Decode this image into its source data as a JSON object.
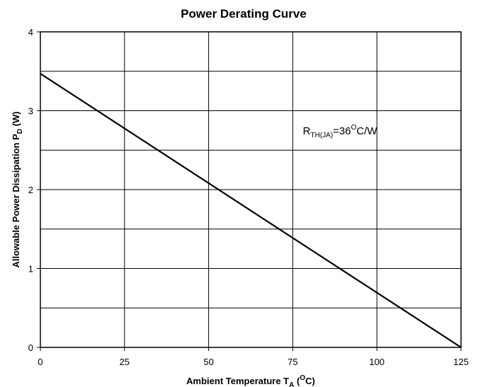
{
  "chart_data": {
    "type": "line",
    "title": "Power Derating Curve",
    "xlabel": {
      "main": "Ambient Temperature T",
      "sub": "A",
      "paren_open": " (",
      "sup": "O",
      "unit": "C)"
    },
    "ylabel": {
      "main": "Allowable Power Dissipation P",
      "sub": "D",
      "unit": " (W)"
    },
    "xlim": [
      0,
      125
    ],
    "ylim": [
      0,
      4
    ],
    "x_ticks": [
      "0",
      "25",
      "50",
      "75",
      "100",
      "125"
    ],
    "y_ticks": [
      "0",
      "1",
      "2",
      "3",
      "4"
    ],
    "x_grid": [
      0,
      25,
      50,
      75,
      100,
      125
    ],
    "y_grid": [
      0,
      0.5,
      1,
      1.5,
      2,
      2.5,
      3,
      3.5,
      4
    ],
    "grid": true,
    "series": [
      {
        "x": [
          0,
          125
        ],
        "y": [
          3.47,
          0
        ]
      }
    ],
    "annotation": {
      "main": "R",
      "sub": "TH(JA)",
      "mid": "=36",
      "sup": "O",
      "tail": "C/W",
      "x": 78,
      "y": 2.7
    }
  }
}
